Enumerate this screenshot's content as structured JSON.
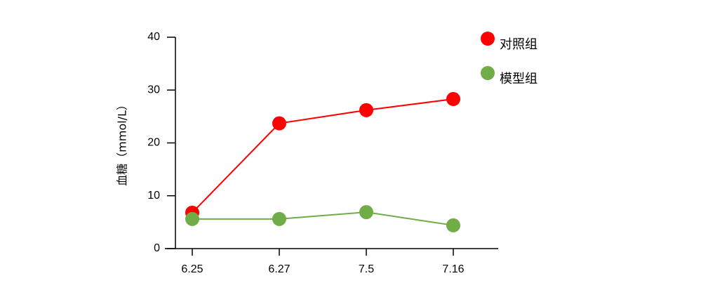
{
  "chart_data": {
    "type": "line",
    "y_label": "血糖（mmol/L）",
    "categories": [
      "6.25",
      "6.27",
      "7.5",
      "7.16"
    ],
    "series": [
      {
        "name": "对照组",
        "color": "#ff0000",
        "values": [
          6.8,
          23.7,
          26.2,
          28.3
        ]
      },
      {
        "name": "模型组",
        "color": "#70ad47",
        "values": [
          5.6,
          5.6,
          6.9,
          4.4
        ]
      }
    ],
    "ylim": [
      0,
      40
    ],
    "yticks": [
      0,
      10,
      20,
      30,
      40
    ]
  }
}
